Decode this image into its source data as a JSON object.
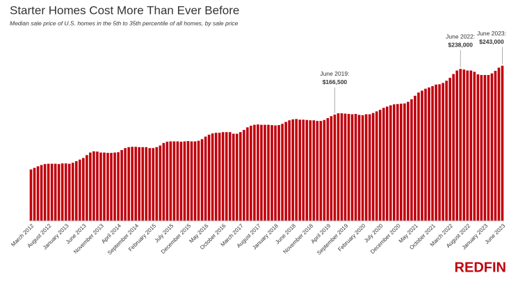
{
  "chart_data": {
    "type": "bar",
    "title": "Starter Homes Cost More Than Ever Before",
    "subtitle": "Median sale price of U.S. homes in the 5th to 35th percentile of all homes, by sale price",
    "brand": "REDFIN",
    "color": "#c0000c",
    "ylim": [
      0,
      260000
    ],
    "categories": [
      "March 2012",
      null,
      null,
      null,
      null,
      "August 2012",
      null,
      null,
      null,
      null,
      "January 2013",
      null,
      null,
      null,
      null,
      "June 2013",
      null,
      null,
      null,
      null,
      "November 2013",
      null,
      null,
      null,
      null,
      "April 2014",
      null,
      null,
      null,
      null,
      "September 2014",
      null,
      null,
      null,
      null,
      "February 2015",
      null,
      null,
      null,
      null,
      "July 2015",
      null,
      null,
      null,
      null,
      "December 2015",
      null,
      null,
      null,
      null,
      "May 2016",
      null,
      null,
      null,
      null,
      "October 2016",
      null,
      null,
      null,
      null,
      "March 2017",
      null,
      null,
      null,
      null,
      "August 2017",
      null,
      null,
      null,
      null,
      "January 2018",
      null,
      null,
      null,
      null,
      "June 2018",
      null,
      null,
      null,
      null,
      "November 2018",
      null,
      null,
      null,
      null,
      "April 2019",
      null,
      null,
      null,
      null,
      "September 2019",
      null,
      null,
      null,
      null,
      "February 2020",
      null,
      null,
      null,
      null,
      "July 2020",
      null,
      null,
      null,
      null,
      "December 2020",
      null,
      null,
      null,
      null,
      "May 2021",
      null,
      null,
      null,
      null,
      "October 2021",
      null,
      null,
      null,
      null,
      "March 2022",
      null,
      null,
      null,
      null,
      "August 2022",
      null,
      null,
      null,
      null,
      "January 2023",
      null,
      null,
      null,
      null,
      "June 2023"
    ],
    "values": [
      80500,
      83000,
      85500,
      87500,
      89000,
      89500,
      89500,
      89500,
      89000,
      90000,
      90000,
      89500,
      91000,
      93500,
      96000,
      98500,
      103000,
      107000,
      109000,
      108500,
      107000,
      107000,
      106500,
      106500,
      107000,
      107500,
      111000,
      114000,
      115500,
      116000,
      116000,
      115500,
      115500,
      115500,
      114000,
      114000,
      115500,
      118000,
      122000,
      124000,
      124500,
      124500,
      124500,
      124000,
      124500,
      125000,
      124500,
      124500,
      125500,
      128000,
      132000,
      135000,
      137000,
      138000,
      138000,
      139000,
      139000,
      139000,
      136500,
      136500,
      139000,
      142500,
      146500,
      149000,
      150500,
      151000,
      150500,
      150500,
      150500,
      150000,
      149500,
      150000,
      152000,
      155000,
      157500,
      159000,
      159500,
      158500,
      158500,
      158000,
      157500,
      157500,
      156500,
      156500,
      158000,
      161000,
      164000,
      166500,
      168500,
      168500,
      168000,
      167500,
      167000,
      167500,
      166000,
      165500,
      167000,
      167000,
      169000,
      171500,
      174000,
      177000,
      179000,
      181000,
      182500,
      183000,
      183500,
      184000,
      186500,
      190500,
      196000,
      201000,
      204000,
      207000,
      209000,
      211000,
      213500,
      214000,
      216000,
      219500,
      224000,
      230000,
      235500,
      238000,
      237000,
      235500,
      235500,
      233500,
      229500,
      228500,
      228500,
      228500,
      231000,
      235000,
      240000,
      243000
    ],
    "annotations": [
      {
        "text": "June 2019:",
        "value_label": "$166,500",
        "value": 166500
      },
      {
        "text": "June 2022:",
        "value_label": "$238,000",
        "value": 238000
      },
      {
        "text": "June 2023:",
        "value_label": "$243,000",
        "value": 243000
      }
    ]
  }
}
